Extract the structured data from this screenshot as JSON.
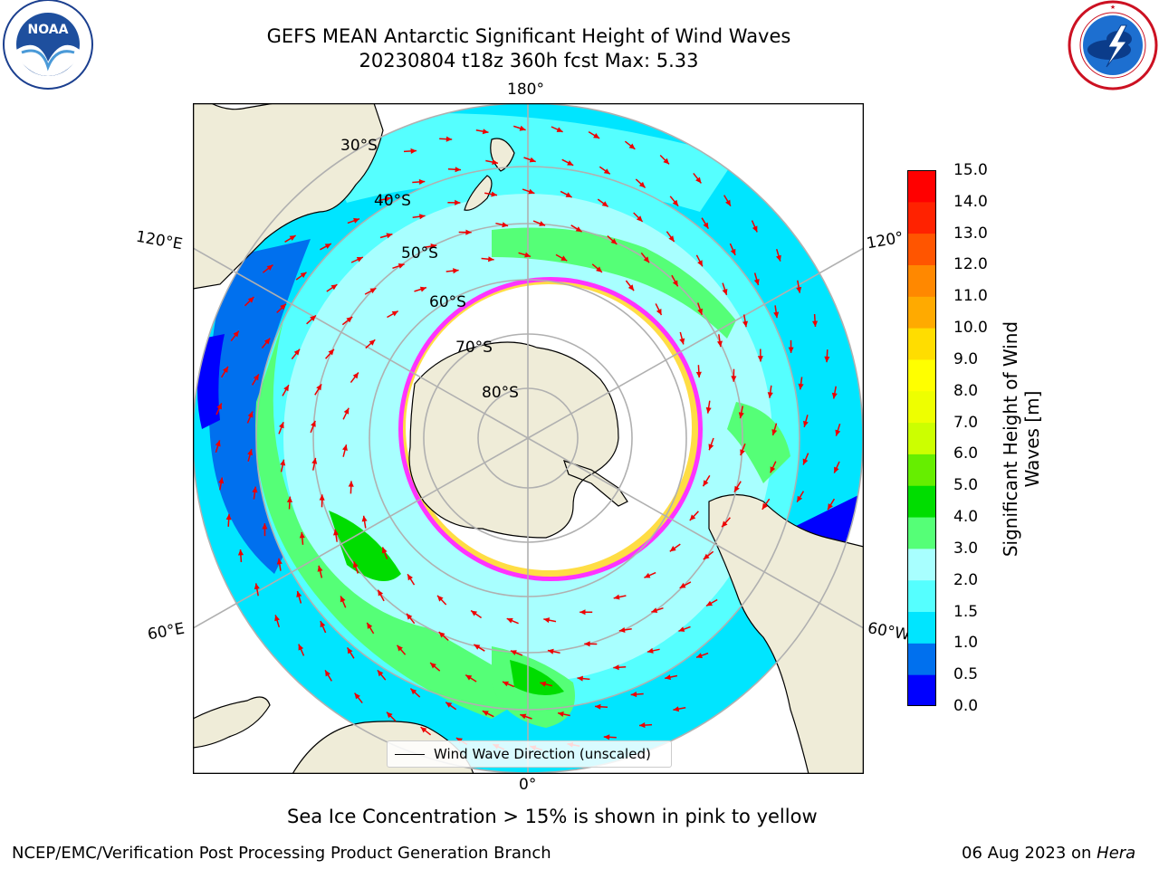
{
  "header": {
    "title_line1": "GEFS MEAN Antarctic Significant Height of Wind Waves",
    "title_line2": "20230804 t18z 360h fcst   Max: 5.33"
  },
  "logos": {
    "noaa": {
      "text": "NOAA",
      "ring": "NATIONAL OCEANIC AND ATMOSPHERIC ADMINISTRATION · U.S. DEPARTMENT OF COMMERCE"
    },
    "nws": {
      "ring": "NATIONAL WEATHER SERVICE"
    }
  },
  "map": {
    "projection": "south-polar-stereographic",
    "longitude_labels": {
      "top": "180°",
      "bottom": "0°",
      "upper_left": "120°E",
      "lower_left": "60°E",
      "upper_right": "120°",
      "lower_right": "60°W"
    },
    "latitude_labels": [
      "30°S",
      "40°S",
      "50°S",
      "60°S",
      "70°S",
      "80°S"
    ],
    "colors": {
      "land": "#efecd8",
      "ice_edge_pink": "#ff33ff",
      "ice_edge_yellow": "#ffdd44",
      "arrow": "#ee0000",
      "gridline": "#b0b0b0"
    },
    "legend_label": "Wind Wave Direction (unscaled)"
  },
  "colorbar": {
    "label": "Significant Height of Wind Waves [m]",
    "label_line1": "Significant Height of Wind",
    "label_line2": "Waves [m]",
    "ticks": [
      "0.0",
      "0.5",
      "1.0",
      "1.5",
      "2.0",
      "3.0",
      "4.0",
      "5.0",
      "6.0",
      "7.0",
      "8.0",
      "9.0",
      "10.0",
      "11.0",
      "12.0",
      "13.0",
      "14.0",
      "15.0"
    ],
    "colors": [
      "#0000ff",
      "#0070ee",
      "#00e5ff",
      "#55ffff",
      "#a8ffff",
      "#55ff77",
      "#00dd00",
      "#66ee00",
      "#ccff00",
      "#eeff00",
      "#ffff00",
      "#ffdd00",
      "#ffaa00",
      "#ff8800",
      "#ff5500",
      "#ff2200",
      "#ff0000"
    ]
  },
  "caption": "Sea Ice Concentration > 15% is shown in pink to yellow",
  "footer": {
    "left": "NCEP/EMC/Verification Post Processing Product Generation Branch",
    "right_prefix": "06 Aug 2023 on ",
    "right_machine": "Hera"
  }
}
